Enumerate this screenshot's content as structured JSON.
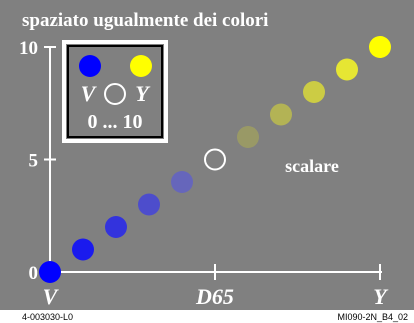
{
  "chart_data": {
    "type": "scatter",
    "title": "spaziato ugualmente dei colori",
    "ylim": [
      0,
      10
    ],
    "y_ticks": [
      "0",
      "5",
      "10"
    ],
    "x_tick_labels": [
      "V",
      "D65",
      "Y"
    ],
    "points": [
      {
        "step": 0,
        "color": "#0000ff"
      },
      {
        "step": 1,
        "color": "#1a1aee"
      },
      {
        "step": 2,
        "color": "#3333dd"
      },
      {
        "step": 3,
        "color": "#4d4dcc"
      },
      {
        "step": 4,
        "color": "#6666bb"
      },
      {
        "step": 5,
        "color": "#808080",
        "hollow": true
      },
      {
        "step": 6,
        "color": "#999966"
      },
      {
        "step": 7,
        "color": "#b3b355"
      },
      {
        "step": 8,
        "color": "#cccc44"
      },
      {
        "step": 9,
        "color": "#e6e633"
      },
      {
        "step": 10,
        "color": "#ffff00"
      }
    ],
    "annotation": "scalare",
    "background_color": "#808080"
  },
  "legend": {
    "left_color": "#0000ff",
    "right_color": "#ffff00",
    "left_label": "V",
    "right_label": "Y",
    "range_label": "0 ... 10"
  },
  "footer": {
    "left_code": "4-003030-L0",
    "right_code": "MI090-2N_B4_02"
  }
}
